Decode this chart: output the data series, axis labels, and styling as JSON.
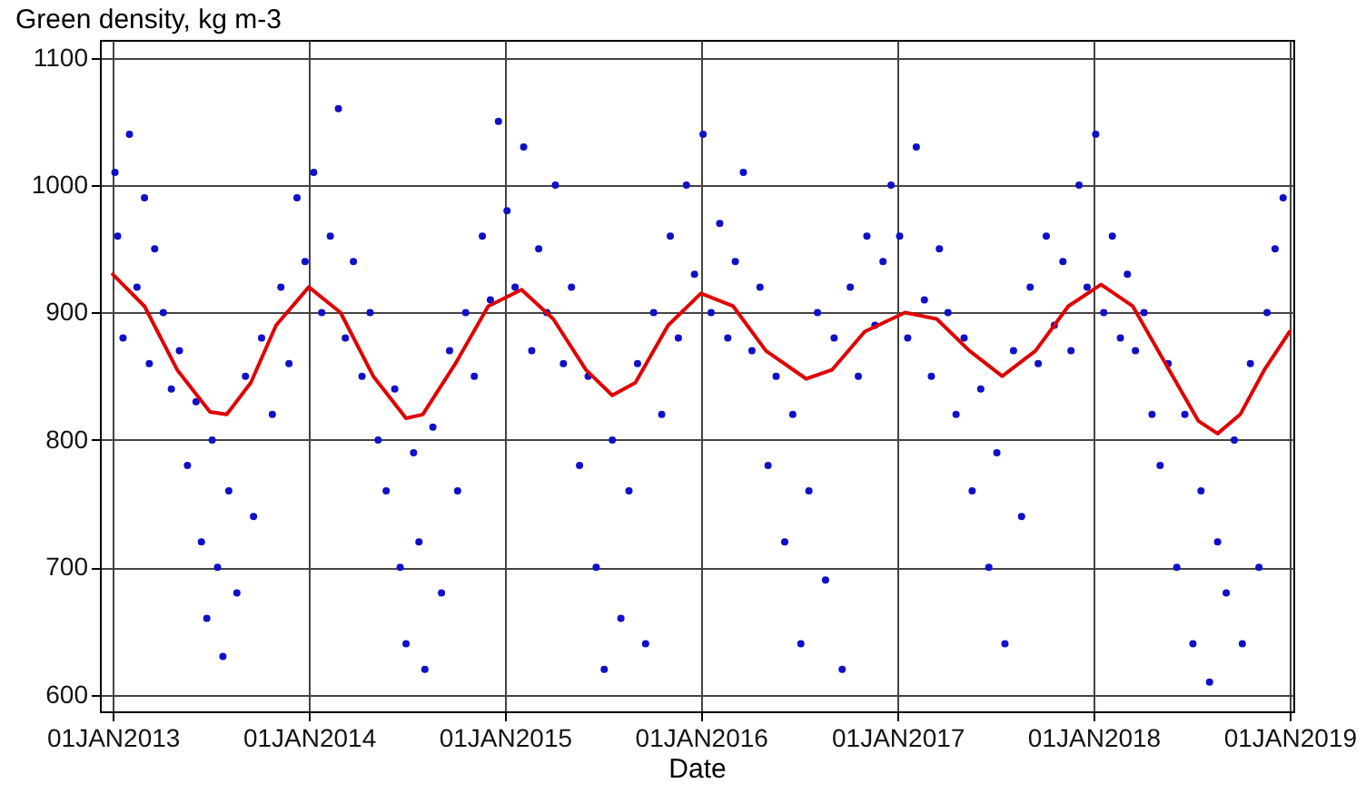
{
  "chart_data": {
    "type": "scatter",
    "ylabel": "Green density, kg m-3",
    "xlabel": "Date",
    "xlim": [
      "2012-12-08",
      "2019-01-08"
    ],
    "ylim": [
      587,
      1114
    ],
    "xticks": [
      {
        "value": "2013-01-01",
        "label": "01JAN2013"
      },
      {
        "value": "2014-01-01",
        "label": "01JAN2014"
      },
      {
        "value": "2015-01-01",
        "label": "01JAN2015"
      },
      {
        "value": "2016-01-01",
        "label": "01JAN2016"
      },
      {
        "value": "2017-01-01",
        "label": "01JAN2017"
      },
      {
        "value": "2018-01-01",
        "label": "01JAN2018"
      },
      {
        "value": "2019-01-01",
        "label": "01JAN2019"
      }
    ],
    "yticks": [
      600,
      700,
      800,
      900,
      1000,
      1100
    ],
    "grid": true,
    "series": [
      {
        "marker": "circle",
        "color": "#1010c8",
        "x": [
          "2013-01-05",
          "2013-01-10",
          "2013-01-20",
          "2013-02-01",
          "2013-02-15",
          "2013-03-01",
          "2013-03-10",
          "2013-03-20",
          "2013-04-05",
          "2013-04-20",
          "2013-05-05",
          "2013-05-20",
          "2013-06-05",
          "2013-06-15",
          "2013-06-25",
          "2013-07-05",
          "2013-07-15",
          "2013-07-25",
          "2013-08-05",
          "2013-08-20",
          "2013-09-05",
          "2013-09-20",
          "2013-10-05",
          "2013-10-25",
          "2013-11-10",
          "2013-11-25",
          "2013-12-10",
          "2013-12-25",
          "2014-01-10",
          "2014-01-25",
          "2014-02-10",
          "2014-02-25",
          "2014-03-10",
          "2014-03-25",
          "2014-04-10",
          "2014-04-25",
          "2014-05-10",
          "2014-05-25",
          "2014-06-10",
          "2014-06-20",
          "2014-07-01",
          "2014-07-15",
          "2014-07-25",
          "2014-08-05",
          "2014-08-20",
          "2014-09-05",
          "2014-09-20",
          "2014-10-05",
          "2014-10-20",
          "2014-11-05",
          "2014-11-20",
          "2014-12-05",
          "2014-12-20",
          "2015-01-05",
          "2015-01-20",
          "2015-02-05",
          "2015-02-20",
          "2015-03-05",
          "2015-03-20",
          "2015-04-05",
          "2015-04-20",
          "2015-05-05",
          "2015-05-20",
          "2015-06-05",
          "2015-06-20",
          "2015-07-05",
          "2015-07-20",
          "2015-08-05",
          "2015-08-20",
          "2015-09-05",
          "2015-09-20",
          "2015-10-05",
          "2015-10-20",
          "2015-11-05",
          "2015-11-20",
          "2015-12-05",
          "2015-12-20",
          "2016-01-05",
          "2016-01-20",
          "2016-02-05",
          "2016-02-20",
          "2016-03-05",
          "2016-03-20",
          "2016-04-05",
          "2016-04-20",
          "2016-05-05",
          "2016-05-20",
          "2016-06-05",
          "2016-06-20",
          "2016-07-05",
          "2016-07-20",
          "2016-08-05",
          "2016-08-20",
          "2016-09-05",
          "2016-09-20",
          "2016-10-05",
          "2016-10-20",
          "2016-11-05",
          "2016-11-20",
          "2016-12-05",
          "2016-12-20",
          "2017-01-05",
          "2017-01-20",
          "2017-02-05",
          "2017-02-20",
          "2017-03-05",
          "2017-03-20",
          "2017-04-05",
          "2017-04-20",
          "2017-05-05",
          "2017-05-20",
          "2017-06-05",
          "2017-06-20",
          "2017-07-05",
          "2017-07-20",
          "2017-08-05",
          "2017-08-20",
          "2017-09-05",
          "2017-09-20",
          "2017-10-05",
          "2017-10-20",
          "2017-11-05",
          "2017-11-20",
          "2017-12-05",
          "2017-12-20",
          "2018-01-05",
          "2018-01-20",
          "2018-02-05",
          "2018-02-20",
          "2018-03-05",
          "2018-03-20",
          "2018-04-05",
          "2018-04-20",
          "2018-05-05",
          "2018-05-20",
          "2018-06-05",
          "2018-06-20",
          "2018-07-05",
          "2018-07-20",
          "2018-08-05",
          "2018-08-20",
          "2018-09-05",
          "2018-09-20",
          "2018-10-05",
          "2018-10-20",
          "2018-11-05",
          "2018-11-20",
          "2018-12-05",
          "2018-12-20"
        ],
        "values": [
          1010,
          960,
          880,
          1040,
          920,
          990,
          860,
          950,
          900,
          840,
          870,
          780,
          830,
          720,
          660,
          800,
          700,
          630,
          760,
          680,
          850,
          740,
          880,
          820,
          920,
          860,
          990,
          940,
          1010,
          900,
          960,
          1060,
          880,
          940,
          850,
          900,
          800,
          760,
          840,
          700,
          640,
          790,
          720,
          620,
          810,
          680,
          870,
          760,
          900,
          850,
          960,
          910,
          1050,
          980,
          920,
          1030,
          870,
          950,
          900,
          1000,
          860,
          920,
          780,
          850,
          700,
          620,
          800,
          660,
          760,
          860,
          640,
          900,
          820,
          960,
          880,
          1000,
          930,
          1040,
          900,
          970,
          880,
          940,
          1010,
          870,
          920,
          780,
          850,
          720,
          820,
          640,
          760,
          900,
          690,
          880,
          620,
          920,
          850,
          960,
          890,
          940,
          1000,
          960,
          880,
          1030,
          910,
          850,
          950,
          900,
          820,
          880,
          760,
          840,
          700,
          790,
          640,
          870,
          740,
          920,
          860,
          960,
          890,
          940,
          870,
          1000,
          920,
          1040,
          900,
          960,
          880,
          930,
          870,
          900,
          820,
          780,
          860,
          700,
          820,
          640,
          760,
          610,
          720,
          680,
          800,
          640,
          860,
          700,
          900,
          950,
          990
        ]
      },
      {
        "type": "line",
        "color": "#e00000",
        "x": [
          "2013-01-01",
          "2013-03-01",
          "2013-05-01",
          "2013-07-01",
          "2013-08-01",
          "2013-09-15",
          "2013-11-01",
          "2014-01-01",
          "2014-03-01",
          "2014-05-01",
          "2014-07-01",
          "2014-08-01",
          "2014-10-01",
          "2014-12-01",
          "2015-02-01",
          "2015-04-01",
          "2015-06-01",
          "2015-07-20",
          "2015-09-01",
          "2015-11-01",
          "2016-01-01",
          "2016-03-01",
          "2016-05-01",
          "2016-07-15",
          "2016-09-01",
          "2016-11-01",
          "2017-01-15",
          "2017-03-15",
          "2017-05-15",
          "2017-07-15",
          "2017-09-15",
          "2017-11-15",
          "2018-01-15",
          "2018-03-15",
          "2018-05-15",
          "2018-07-15",
          "2018-08-20",
          "2018-10-01",
          "2018-11-15",
          "2019-01-01"
        ],
        "values": [
          930,
          905,
          855,
          822,
          820,
          845,
          890,
          920,
          900,
          850,
          817,
          820,
          860,
          905,
          918,
          895,
          855,
          835,
          845,
          890,
          915,
          905,
          870,
          848,
          855,
          885,
          900,
          895,
          870,
          850,
          870,
          905,
          922,
          905,
          860,
          815,
          805,
          820,
          855,
          885
        ]
      }
    ]
  }
}
